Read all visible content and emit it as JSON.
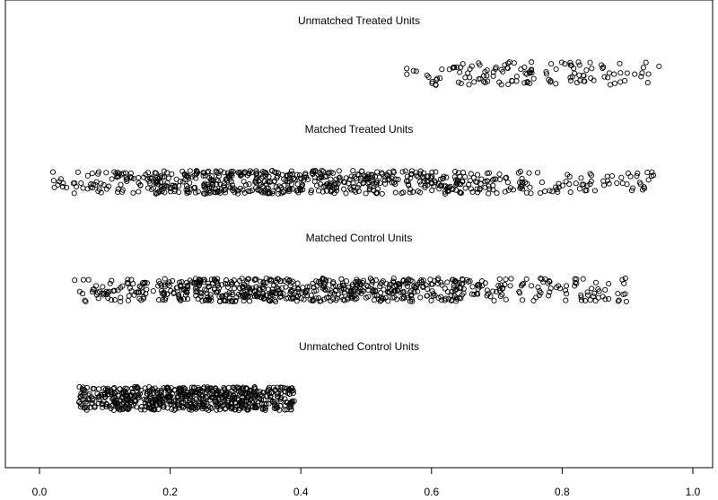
{
  "chart_data": {
    "type": "scatter",
    "title": "",
    "xlabel": "",
    "ylabel": "",
    "xlim": [
      -0.04,
      1.04
    ],
    "x_ticks": [
      "0.0",
      "0.2",
      "0.4",
      "0.6",
      "0.8",
      "1.0"
    ],
    "x_tick_values": [
      0.0,
      0.2,
      0.4,
      0.6,
      0.8,
      1.0
    ],
    "grid": false,
    "legend": "none",
    "groups": [
      {
        "label": "Unmatched Treated Units",
        "x_range": [
          0.56,
          0.95
        ],
        "density": [
          [
            0.56,
            0.4
          ],
          [
            0.6,
            0.7
          ],
          [
            0.65,
            1.0
          ],
          [
            0.75,
            1.0
          ],
          [
            0.85,
            0.7
          ],
          [
            0.95,
            0.5
          ]
        ],
        "n": 130
      },
      {
        "label": "Matched Treated Units",
        "x_range": [
          0.02,
          0.94
        ],
        "density": [
          [
            0.02,
            0.2
          ],
          [
            0.03,
            0.2
          ],
          [
            0.11,
            0.4
          ],
          [
            0.2,
            0.8
          ],
          [
            0.27,
            1.0
          ],
          [
            0.45,
            1.0
          ],
          [
            0.55,
            0.9
          ],
          [
            0.65,
            0.6
          ],
          [
            0.75,
            0.3
          ],
          [
            0.94,
            0.25
          ]
        ],
        "n": 700
      },
      {
        "label": "Matched Control Units",
        "x_range": [
          0.05,
          0.9
        ],
        "density": [
          [
            0.05,
            0.2
          ],
          [
            0.06,
            0.2
          ],
          [
            0.12,
            0.4
          ],
          [
            0.2,
            0.8
          ],
          [
            0.27,
            1.0
          ],
          [
            0.45,
            1.0
          ],
          [
            0.55,
            0.9
          ],
          [
            0.62,
            0.7
          ],
          [
            0.72,
            0.3
          ],
          [
            0.9,
            0.2
          ]
        ],
        "n": 700
      },
      {
        "label": "Unmatched Control Units",
        "x_range": [
          0.06,
          0.39
        ],
        "density": [
          [
            0.06,
            0.5
          ],
          [
            0.12,
            0.9
          ],
          [
            0.2,
            1.0
          ],
          [
            0.3,
            1.0
          ],
          [
            0.39,
            0.6
          ]
        ],
        "n": 650
      }
    ]
  }
}
